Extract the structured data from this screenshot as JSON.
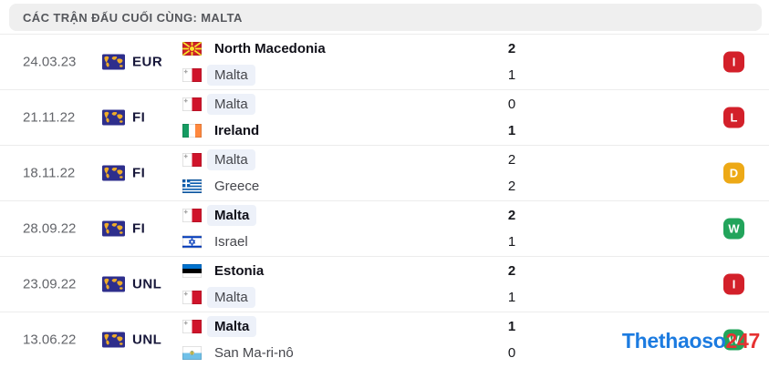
{
  "header": {
    "title": "CÁC TRẬN ĐẤU CUỐI CÙNG: MALTA"
  },
  "colors": {
    "loss": "#d3202a",
    "draw": "#eda916",
    "win": "#22a45b",
    "highlight_bg": "#edf1f9",
    "watermark_blue": "#1c7be0",
    "watermark_red": "#e63232"
  },
  "matches": [
    {
      "date": "24.03.23",
      "competition": "EUR",
      "home": {
        "name": "North Macedonia",
        "flag": "north-macedonia",
        "score": "2",
        "bold": true,
        "highlight": false
      },
      "away": {
        "name": "Malta",
        "flag": "malta",
        "score": "1",
        "bold": false,
        "highlight": true
      },
      "result": {
        "label": "I",
        "type": "loss"
      }
    },
    {
      "date": "21.11.22",
      "competition": "FI",
      "home": {
        "name": "Malta",
        "flag": "malta",
        "score": "0",
        "bold": false,
        "highlight": true
      },
      "away": {
        "name": "Ireland",
        "flag": "ireland",
        "score": "1",
        "bold": true,
        "highlight": false
      },
      "result": {
        "label": "L",
        "type": "loss"
      }
    },
    {
      "date": "18.11.22",
      "competition": "FI",
      "home": {
        "name": "Malta",
        "flag": "malta",
        "score": "2",
        "bold": false,
        "highlight": true
      },
      "away": {
        "name": "Greece",
        "flag": "greece",
        "score": "2",
        "bold": false,
        "highlight": false
      },
      "result": {
        "label": "D",
        "type": "draw"
      }
    },
    {
      "date": "28.09.22",
      "competition": "FI",
      "home": {
        "name": "Malta",
        "flag": "malta",
        "score": "2",
        "bold": true,
        "highlight": true
      },
      "away": {
        "name": "Israel",
        "flag": "israel",
        "score": "1",
        "bold": false,
        "highlight": false
      },
      "result": {
        "label": "W",
        "type": "win"
      }
    },
    {
      "date": "23.09.22",
      "competition": "UNL",
      "home": {
        "name": "Estonia",
        "flag": "estonia",
        "score": "2",
        "bold": true,
        "highlight": false
      },
      "away": {
        "name": "Malta",
        "flag": "malta",
        "score": "1",
        "bold": false,
        "highlight": true
      },
      "result": {
        "label": "I",
        "type": "loss"
      }
    },
    {
      "date": "13.06.22",
      "competition": "UNL",
      "home": {
        "name": "Malta",
        "flag": "malta",
        "score": "1",
        "bold": true,
        "highlight": true
      },
      "away": {
        "name": "San Ma-ri-nô",
        "flag": "san-marino",
        "score": "0",
        "bold": false,
        "highlight": false
      },
      "result": {
        "label": "W",
        "type": "win"
      }
    }
  ],
  "watermark": {
    "blue": "Thethaoso",
    "red": "247"
  }
}
